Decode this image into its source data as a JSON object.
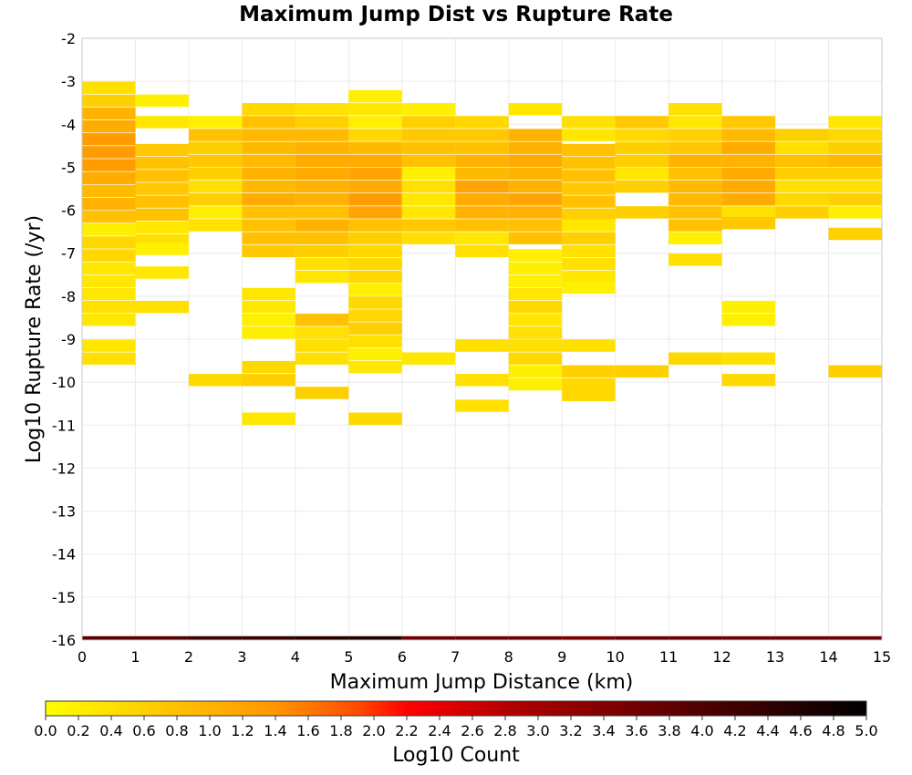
{
  "chart_data": {
    "type": "heatmap",
    "title": "Maximum Jump Dist vs Rupture Rate",
    "xlabel": "Maximum Jump Distance (km)",
    "ylabel": "Log10 Rupture Rate (/yr)",
    "xlim": [
      0,
      15
    ],
    "ylim": [
      -16,
      -2
    ],
    "x_ticks": [
      "0",
      "1",
      "2",
      "3",
      "4",
      "5",
      "6",
      "7",
      "8",
      "9",
      "10",
      "11",
      "12",
      "13",
      "14",
      "15"
    ],
    "y_ticks": [
      "-2",
      "-3",
      "-4",
      "-5",
      "-6",
      "-7",
      "-8",
      "-9",
      "-10",
      "-11",
      "-12",
      "-13",
      "-14",
      "-15",
      "-16"
    ],
    "x_bin_width": 1,
    "y_bin_height": 0.285,
    "colorbar": {
      "label": "Log10 Count",
      "min": 0,
      "max": 5,
      "ticks": [
        "0.0",
        "0.2",
        "0.4",
        "0.6",
        "0.8",
        "1.0",
        "1.2",
        "1.4",
        "1.6",
        "1.8",
        "2.0",
        "2.2",
        "2.4",
        "2.6",
        "2.8",
        "3.0",
        "3.2",
        "3.4",
        "3.6",
        "3.8",
        "4.0",
        "4.2",
        "4.4",
        "4.6",
        "4.8",
        "5.0"
      ],
      "colors": [
        "#ffff00",
        "#ffc800",
        "#ff9600",
        "#ff4b00",
        "#ff0000",
        "#b40000",
        "#700000",
        "#000000"
      ]
    },
    "columns": [
      {
        "x": 0,
        "cells": [
          [
            -3.15,
            0.4
          ],
          [
            -3.45,
            0.6
          ],
          [
            -3.75,
            1.0
          ],
          [
            -4.05,
            1.1
          ],
          [
            -4.35,
            1.3
          ],
          [
            -4.65,
            1.3
          ],
          [
            -4.95,
            1.3
          ],
          [
            -5.25,
            1.1
          ],
          [
            -5.55,
            0.9
          ],
          [
            -5.85,
            1.0
          ],
          [
            -6.15,
            0.8
          ],
          [
            -6.45,
            0.2
          ],
          [
            -6.75,
            0.5
          ],
          [
            -7.05,
            0.5
          ],
          [
            -7.35,
            0.3
          ],
          [
            -7.65,
            0.3
          ],
          [
            -7.95,
            0.3
          ],
          [
            -8.25,
            0.4
          ],
          [
            -8.55,
            0.3
          ],
          [
            -9.15,
            0.3
          ],
          [
            -9.45,
            0.4
          ]
        ]
      },
      {
        "x": 1,
        "cells": [
          [
            -3.45,
            0.2
          ],
          [
            -3.95,
            0.3
          ],
          [
            -4.6,
            0.7
          ],
          [
            -4.9,
            0.8
          ],
          [
            -5.2,
            0.8
          ],
          [
            -5.5,
            0.7
          ],
          [
            -5.8,
            0.8
          ],
          [
            -6.1,
            0.8
          ],
          [
            -6.4,
            0.3
          ],
          [
            -6.7,
            0.4
          ],
          [
            -6.9,
            0.2
          ],
          [
            -7.45,
            0.3
          ],
          [
            -8.25,
            0.4
          ]
        ]
      },
      {
        "x": 2,
        "cells": [
          [
            -3.95,
            0.2
          ],
          [
            -4.25,
            0.8
          ],
          [
            -4.55,
            0.6
          ],
          [
            -4.85,
            0.7
          ],
          [
            -5.15,
            0.6
          ],
          [
            -5.45,
            0.4
          ],
          [
            -5.75,
            0.6
          ],
          [
            -6.05,
            0.2
          ],
          [
            -6.35,
            0.4
          ],
          [
            -9.95,
            0.5
          ]
        ]
      },
      {
        "x": 3,
        "cells": [
          [
            -3.65,
            0.5
          ],
          [
            -3.95,
            0.8
          ],
          [
            -4.25,
            0.9
          ],
          [
            -4.55,
            0.9
          ],
          [
            -4.85,
            0.9
          ],
          [
            -5.15,
            1.0
          ],
          [
            -5.45,
            0.9
          ],
          [
            -5.75,
            1.1
          ],
          [
            -6.05,
            0.8
          ],
          [
            -6.35,
            0.8
          ],
          [
            -6.65,
            0.8
          ],
          [
            -6.95,
            0.7
          ],
          [
            -7.95,
            0.3
          ],
          [
            -8.25,
            0.3
          ],
          [
            -8.55,
            0.2
          ],
          [
            -8.85,
            0.2
          ],
          [
            -9.65,
            0.5
          ],
          [
            -9.95,
            0.6
          ],
          [
            -10.85,
            0.3
          ]
        ]
      },
      {
        "x": 4,
        "cells": [
          [
            -3.65,
            0.4
          ],
          [
            -3.95,
            0.6
          ],
          [
            -4.25,
            0.9
          ],
          [
            -4.55,
            1.0
          ],
          [
            -4.85,
            1.1
          ],
          [
            -5.15,
            1.1
          ],
          [
            -5.45,
            1.0
          ],
          [
            -5.75,
            1.0
          ],
          [
            -6.05,
            0.8
          ],
          [
            -6.35,
            1.0
          ],
          [
            -6.65,
            0.8
          ],
          [
            -6.95,
            0.6
          ],
          [
            -7.25,
            0.4
          ],
          [
            -7.55,
            0.3
          ],
          [
            -8.55,
            0.8
          ],
          [
            -8.85,
            0.4
          ],
          [
            -9.15,
            0.4
          ],
          [
            -9.45,
            0.4
          ],
          [
            -10.25,
            0.6
          ]
        ]
      },
      {
        "x": 5,
        "cells": [
          [
            -3.35,
            0.2
          ],
          [
            -3.65,
            0.3
          ],
          [
            -3.95,
            0.2
          ],
          [
            -4.25,
            0.5
          ],
          [
            -4.55,
            0.9
          ],
          [
            -4.85,
            1.1
          ],
          [
            -5.15,
            1.2
          ],
          [
            -5.45,
            1.1
          ],
          [
            -5.75,
            1.3
          ],
          [
            -6.05,
            1.2
          ],
          [
            -6.35,
            0.8
          ],
          [
            -6.65,
            0.6
          ],
          [
            -6.95,
            0.5
          ],
          [
            -7.25,
            0.5
          ],
          [
            -7.55,
            0.5
          ],
          [
            -7.85,
            0.2
          ],
          [
            -8.15,
            0.5
          ],
          [
            -8.45,
            0.5
          ],
          [
            -8.75,
            0.6
          ],
          [
            -9.05,
            0.4
          ],
          [
            -9.35,
            0.2
          ],
          [
            -9.65,
            0.3
          ],
          [
            -10.85,
            0.5
          ]
        ]
      },
      {
        "x": 6,
        "cells": [
          [
            -3.65,
            0.2
          ],
          [
            -3.95,
            0.6
          ],
          [
            -4.25,
            0.7
          ],
          [
            -4.55,
            0.8
          ],
          [
            -4.85,
            0.8
          ],
          [
            -5.15,
            0.2
          ],
          [
            -5.45,
            0.4
          ],
          [
            -5.75,
            0.3
          ],
          [
            -6.05,
            0.3
          ],
          [
            -6.35,
            0.7
          ],
          [
            -6.65,
            0.4
          ],
          [
            -9.45,
            0.3
          ]
        ]
      },
      {
        "x": 7,
        "cells": [
          [
            -3.95,
            0.5
          ],
          [
            -4.25,
            0.7
          ],
          [
            -4.55,
            0.8
          ],
          [
            -4.85,
            1.0
          ],
          [
            -5.15,
            0.9
          ],
          [
            -5.45,
            1.2
          ],
          [
            -5.75,
            1.1
          ],
          [
            -6.05,
            1.0
          ],
          [
            -6.35,
            0.8
          ],
          [
            -6.65,
            0.3
          ],
          [
            -6.95,
            0.4
          ],
          [
            -9.15,
            0.4
          ],
          [
            -9.95,
            0.4
          ],
          [
            -10.55,
            0.4
          ]
        ]
      },
      {
        "x": 8,
        "cells": [
          [
            -3.65,
            0.3
          ],
          [
            -4.25,
            1.0
          ],
          [
            -4.55,
            1.0
          ],
          [
            -4.85,
            1.1
          ],
          [
            -5.15,
            1.0
          ],
          [
            -5.45,
            1.0
          ],
          [
            -5.75,
            1.2
          ],
          [
            -6.05,
            1.0
          ],
          [
            -6.35,
            0.8
          ],
          [
            -6.65,
            0.8
          ],
          [
            -7.05,
            0.2
          ],
          [
            -7.35,
            0.2
          ],
          [
            -7.65,
            0.2
          ],
          [
            -7.95,
            0.3
          ],
          [
            -8.25,
            0.5
          ],
          [
            -8.55,
            0.3
          ],
          [
            -8.85,
            0.4
          ],
          [
            -9.15,
            0.4
          ],
          [
            -9.45,
            0.5
          ],
          [
            -9.75,
            0.2
          ],
          [
            -10.05,
            0.2
          ]
        ]
      },
      {
        "x": 9,
        "cells": [
          [
            -3.95,
            0.4
          ],
          [
            -4.25,
            0.3
          ],
          [
            -4.6,
            0.8
          ],
          [
            -4.9,
            0.8
          ],
          [
            -5.2,
            0.8
          ],
          [
            -5.5,
            0.7
          ],
          [
            -5.8,
            0.8
          ],
          [
            -6.1,
            0.6
          ],
          [
            -6.35,
            0.3
          ],
          [
            -6.65,
            0.6
          ],
          [
            -6.95,
            0.4
          ],
          [
            -7.25,
            0.4
          ],
          [
            -7.55,
            0.3
          ],
          [
            -7.8,
            0.2
          ],
          [
            -9.15,
            0.4
          ],
          [
            -9.75,
            0.6
          ],
          [
            -10.05,
            0.5
          ],
          [
            -10.3,
            0.5
          ]
        ]
      },
      {
        "x": 10,
        "cells": [
          [
            -3.95,
            0.7
          ],
          [
            -4.25,
            0.5
          ],
          [
            -4.55,
            0.6
          ],
          [
            -4.85,
            0.6
          ],
          [
            -5.15,
            0.3
          ],
          [
            -5.45,
            0.6
          ],
          [
            -6.05,
            0.6
          ],
          [
            -9.75,
            0.6
          ]
        ]
      },
      {
        "x": 11,
        "cells": [
          [
            -3.65,
            0.4
          ],
          [
            -3.95,
            0.3
          ],
          [
            -4.25,
            0.6
          ],
          [
            -4.55,
            0.7
          ],
          [
            -4.85,
            1.0
          ],
          [
            -5.15,
            0.8
          ],
          [
            -5.45,
            0.9
          ],
          [
            -5.75,
            0.9
          ],
          [
            -6.05,
            0.8
          ],
          [
            -6.35,
            0.8
          ],
          [
            -6.65,
            0.2
          ],
          [
            -7.15,
            0.4
          ],
          [
            -9.45,
            0.5
          ]
        ]
      },
      {
        "x": 12,
        "cells": [
          [
            -3.95,
            0.7
          ],
          [
            -4.25,
            0.9
          ],
          [
            -4.55,
            1.1
          ],
          [
            -4.85,
            1.0
          ],
          [
            -5.15,
            1.1
          ],
          [
            -5.45,
            1.1
          ],
          [
            -5.75,
            1.1
          ],
          [
            -6.05,
            0.4
          ],
          [
            -6.3,
            0.7
          ],
          [
            -8.25,
            0.2
          ],
          [
            -8.55,
            0.2
          ],
          [
            -9.45,
            0.4
          ],
          [
            -9.95,
            0.5
          ]
        ]
      },
      {
        "x": 13,
        "cells": [
          [
            -4.25,
            0.6
          ],
          [
            -4.55,
            0.4
          ],
          [
            -4.85,
            0.8
          ],
          [
            -5.15,
            0.6
          ],
          [
            -5.45,
            0.4
          ],
          [
            -5.75,
            0.5
          ],
          [
            -6.05,
            0.6
          ]
        ]
      },
      {
        "x": 14,
        "cells": [
          [
            -3.95,
            0.3
          ],
          [
            -4.25,
            0.5
          ],
          [
            -4.55,
            0.6
          ],
          [
            -4.85,
            0.9
          ],
          [
            -5.15,
            0.6
          ],
          [
            -5.45,
            0.4
          ],
          [
            -5.75,
            0.6
          ],
          [
            -6.05,
            0.2
          ],
          [
            -6.55,
            0.6
          ],
          [
            -9.75,
            0.6
          ]
        ]
      }
    ],
    "bottom_strip": {
      "y": -16,
      "values": [
        3.9,
        3.9,
        4.2,
        4.3,
        4.5,
        4.6,
        3.6,
        3.6,
        3.6,
        3.5,
        3.7,
        3.7,
        3.6,
        3.6,
        3.6
      ]
    }
  }
}
